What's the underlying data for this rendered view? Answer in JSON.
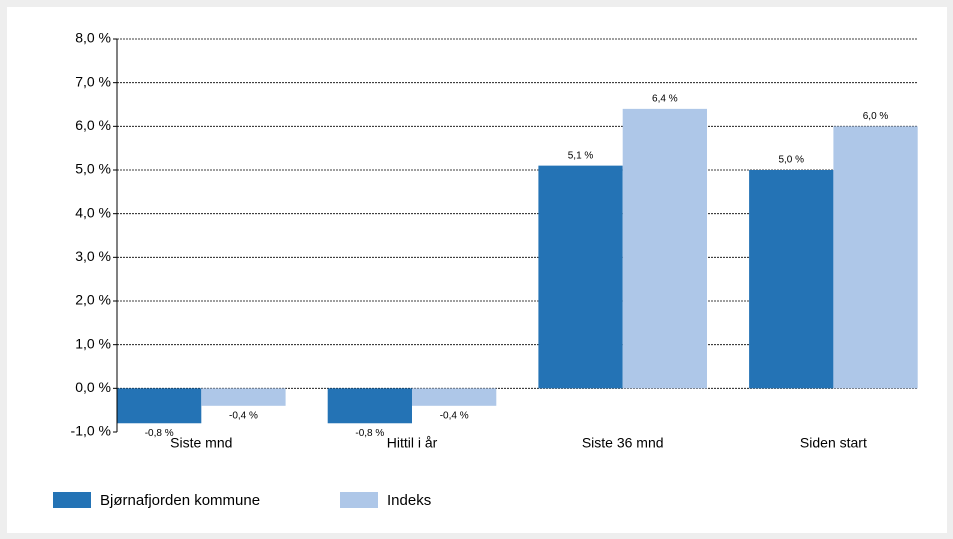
{
  "chart_data": {
    "type": "bar",
    "categories": [
      "Siste mnd",
      "Hittil i år",
      "Siste 36 mnd",
      "Siden start"
    ],
    "series": [
      {
        "name": "Bjørnafjorden kommune",
        "color": "#2473b5",
        "values": [
          -0.8,
          -0.8,
          5.1,
          5.0
        ],
        "value_labels": [
          "-0,8 %",
          "-0,8 %",
          "5,1 %",
          "5,0 %"
        ]
      },
      {
        "name": "Indeks",
        "color": "#aec7e8",
        "values": [
          -0.4,
          -0.4,
          6.4,
          6.0
        ],
        "value_labels": [
          "-0,4 %",
          "-0,4 %",
          "6,4 %",
          "6,0 %"
        ]
      }
    ],
    "ylim": [
      -1,
      8
    ],
    "yticks": [
      {
        "value": -1,
        "label": "-1,0 %"
      },
      {
        "value": 0,
        "label": "0,0 %"
      },
      {
        "value": 1,
        "label": "1,0 %"
      },
      {
        "value": 2,
        "label": "2,0 %"
      },
      {
        "value": 3,
        "label": "3,0 %"
      },
      {
        "value": 4,
        "label": "4,0 %"
      },
      {
        "value": 5,
        "label": "5,0 %"
      },
      {
        "value": 6,
        "label": "6,0 %"
      },
      {
        "value": 7,
        "label": "7,0 %"
      },
      {
        "value": 8,
        "label": "8,0 %"
      }
    ],
    "grid": true
  }
}
